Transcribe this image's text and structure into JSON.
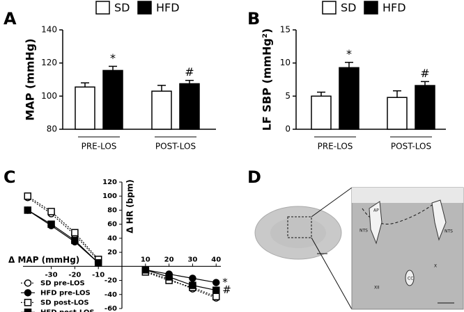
{
  "chart_data": [
    {
      "type": "bar",
      "panel_label": "A",
      "ylabel": "MAP (mmHg)",
      "categories": [
        "PRE-LOS",
        "POST-LOS"
      ],
      "series": [
        {
          "name": "SD",
          "color": "#ffffff",
          "values": [
            105.5,
            103
          ],
          "errors": [
            2.5,
            3.5
          ]
        },
        {
          "name": "HFD",
          "color": "#000000",
          "values": [
            115.5,
            107.5
          ],
          "errors": [
            2.5,
            2
          ],
          "annotations": [
            "*",
            "#"
          ]
        }
      ],
      "ylim": [
        80,
        140
      ],
      "yticks": [
        80,
        100,
        120,
        140
      ]
    },
    {
      "type": "bar",
      "panel_label": "B",
      "ylabel": "LF SBP (mmHg²)",
      "categories": [
        "PRE-LOS",
        "POST-LOS"
      ],
      "series": [
        {
          "name": "SD",
          "color": "#ffffff",
          "values": [
            5.0,
            4.8
          ],
          "errors": [
            0.6,
            1.0
          ]
        },
        {
          "name": "HFD",
          "color": "#000000",
          "values": [
            9.3,
            6.6
          ],
          "errors": [
            0.8,
            0.6
          ],
          "annotations": [
            "*",
            "#"
          ]
        }
      ],
      "ylim": [
        0,
        15
      ],
      "yticks": [
        0,
        5,
        10,
        15
      ]
    },
    {
      "type": "line",
      "panel_label": "C",
      "xlabel": "Δ MAP (mmHg)",
      "ylabel": "Δ HR (bpm)",
      "x": [
        -40,
        -30,
        -20,
        -10,
        10,
        20,
        30,
        40
      ],
      "series": [
        {
          "name": "SD pre-LOS",
          "color": "#000000",
          "marker": "circle",
          "filled": false,
          "dashed": true,
          "values": [
            98,
            75,
            45,
            8,
            -7,
            -18,
            -32,
            -45
          ]
        },
        {
          "name": "HFD pre-LOS",
          "color": "#000000",
          "marker": "circle",
          "filled": true,
          "dashed": false,
          "values": [
            80,
            58,
            35,
            5,
            -5,
            -11,
            -17,
            -23
          ],
          "annotation": "*"
        },
        {
          "name": "SD post-LOS",
          "color": "#000000",
          "marker": "square",
          "filled": false,
          "dashed": true,
          "values": [
            100,
            78,
            48,
            10,
            -8,
            -20,
            -30,
            -43
          ]
        },
        {
          "name": "HFD post-LOS",
          "color": "#000000",
          "marker": "square",
          "filled": true,
          "dashed": false,
          "values": [
            80,
            60,
            37,
            5,
            -5,
            -15,
            -27,
            -34
          ],
          "annotation": "#"
        }
      ],
      "xlim": [
        -42,
        42
      ],
      "ylim": [
        -60,
        120
      ],
      "xticks": [
        -30,
        -20,
        -10,
        10,
        20,
        30,
        40
      ],
      "yticks": [
        -60,
        -40,
        -20,
        20,
        40,
        60,
        80,
        100,
        120
      ]
    }
  ],
  "panel_d": {
    "label": "D",
    "regions": [
      "AP",
      "NTS",
      "NTS",
      "CC",
      "X",
      "XII"
    ]
  }
}
